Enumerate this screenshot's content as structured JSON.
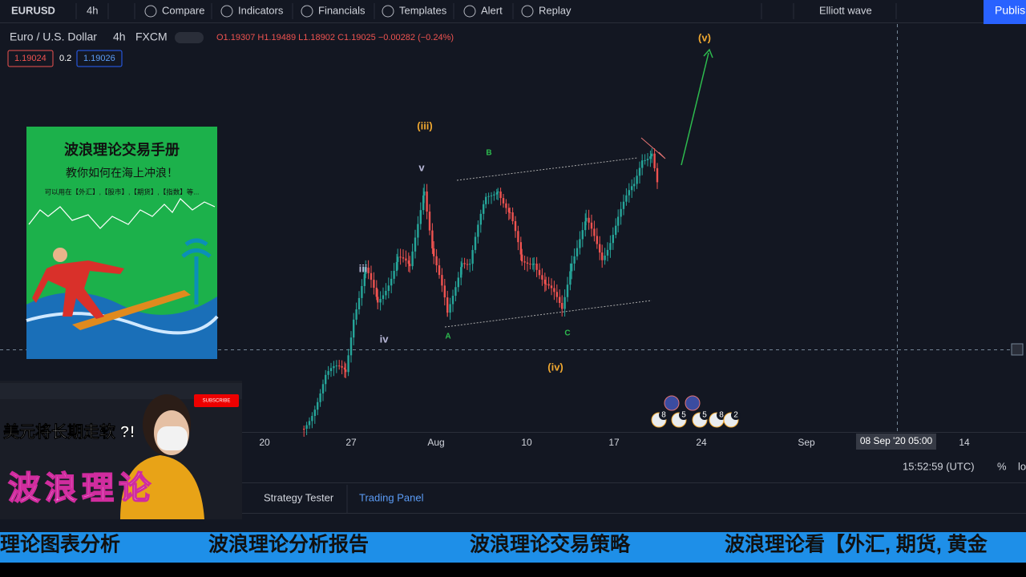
{
  "toolbar": {
    "symbol": "EURUSD",
    "interval": "4h",
    "buttons": [
      "Compare",
      "Indicators",
      "Financials",
      "Templates",
      "Alert",
      "Replay"
    ],
    "drawing": "Elliott wave",
    "publish": "Publis"
  },
  "legend": {
    "symbol": "Euro / U.S. Dollar",
    "interval": "4h",
    "exchange": "FXCM",
    "ohlc": "O1.19307 H1.19489 L1.18902 C1.19025 −0.00282 (−0.24%)",
    "bid": "1.19024",
    "spread": "0.2",
    "ask": "1.19026"
  },
  "waves": [
    "(v)",
    "(iii)",
    "B",
    "v",
    "iii",
    "A",
    "C",
    "iv",
    "(iv)"
  ],
  "x_axis": {
    "labels": [
      "20",
      "27",
      "Aug",
      "10",
      "17",
      "24",
      "Sep",
      "14"
    ],
    "crosshair": "08 Sep '20   05:00"
  },
  "status": {
    "time": "15:52:59 (UTC)",
    "percent": "%",
    "log": "lo"
  },
  "tabs": [
    "Strategy Tester",
    "Trading Panel"
  ],
  "events": [
    "8",
    "5",
    "5",
    "8",
    "2"
  ],
  "ad": {
    "title": "波浪理论交易手册",
    "subtitle": "教你如何在海上冲浪！",
    "text": "可以用在【外汇】,【股市】,【期货】,【指数】等..."
  },
  "video": {
    "headline": "美元将长期走软 ?!",
    "title": "波浪理论",
    "subscribe": "SUBSCRIBE"
  },
  "ticker": [
    "理论图表分析",
    "波浪理论分析报告",
    "波浪理论交易策略",
    "波浪理论看【外汇, 期货, 黄金"
  ]
}
